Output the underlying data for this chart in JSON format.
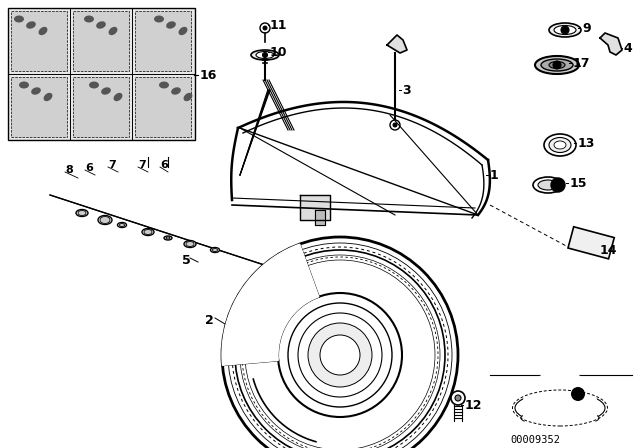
{
  "bg_color": "#ffffff",
  "line_color": "#000000",
  "footer_text": "00009352"
}
